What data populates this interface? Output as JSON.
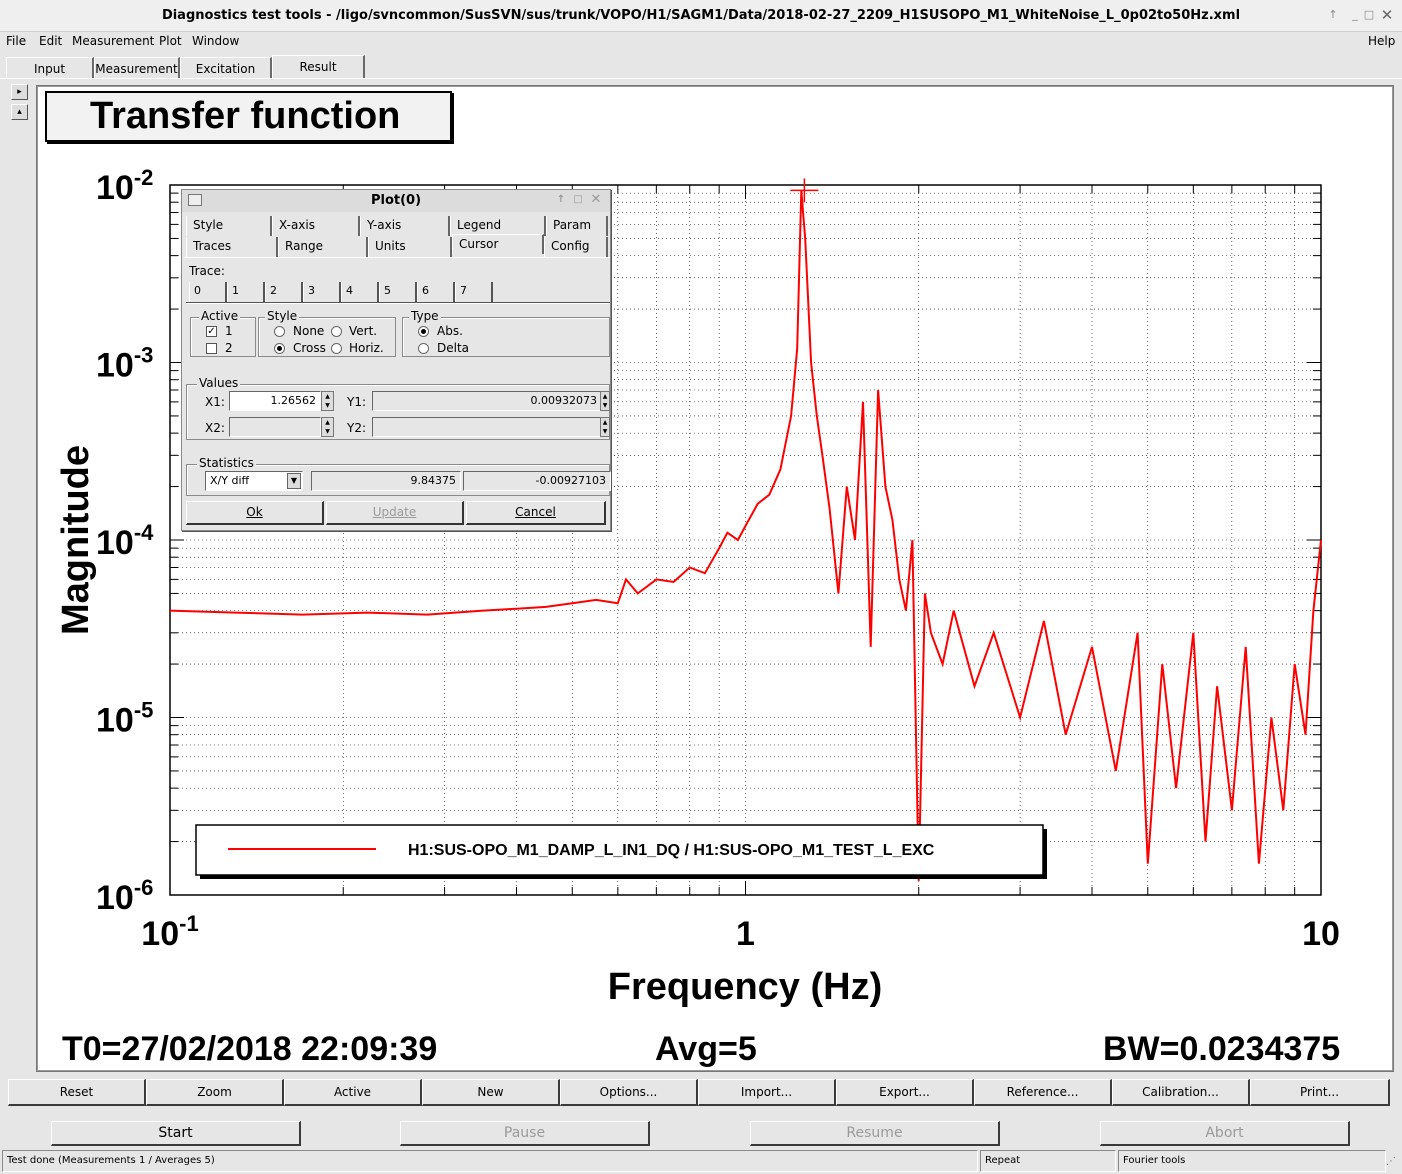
{
  "window": {
    "title": "Diagnostics test tools - /ligo/svncommon/SusSVN/sus/trunk/VOPO/H1/SAGM1/Data/2018-02-27_2209_H1SUSOPO_M1_WhiteNoise_L_0p02to50Hz.xml"
  },
  "menu": {
    "file": "File",
    "edit": "Edit",
    "measurement": "Measurement",
    "plot": "Plot",
    "window": "Window",
    "help": "Help"
  },
  "tabs": {
    "input": "Input",
    "measurement": "Measurement",
    "excitation": "Excitation",
    "result": "Result"
  },
  "plot": {
    "title": "Transfer function",
    "xlabel": "Frequency (Hz)",
    "ylabel": "Magnitude",
    "legend": "H1:SUS-OPO_M1_DAMP_L_IN1_DQ / H1:SUS-OPO_M1_TEST_L_EXC",
    "t0": "T0=27/02/2018 22:09:39",
    "avg": "Avg=5",
    "bw": "BW=0.0234375",
    "trace_color": "#ff0000"
  },
  "chart_data": {
    "type": "line",
    "title": "Transfer function",
    "xlabel": "Frequency (Hz)",
    "ylabel": "Magnitude",
    "xscale": "log",
    "yscale": "log",
    "xlim": [
      0.1,
      10
    ],
    "ylim": [
      1e-06,
      0.01
    ],
    "x_ticks": [
      {
        "base": "10",
        "exp": "-1"
      },
      {
        "base": "1",
        "exp": ""
      },
      {
        "base": "10",
        "exp": ""
      }
    ],
    "y_ticks": [
      {
        "base": "10",
        "exp": "-2"
      },
      {
        "base": "10",
        "exp": "-3"
      },
      {
        "base": "10",
        "exp": "-4"
      },
      {
        "base": "10",
        "exp": "-5"
      },
      {
        "base": "10",
        "exp": "-6"
      }
    ],
    "grid": true,
    "legend_placement": "bottom-left",
    "cursor": {
      "x": 1.26562,
      "y": 0.00932073
    },
    "series": [
      {
        "name": "H1:SUS-OPO_M1_DAMP_L_IN1_DQ / H1:SUS-OPO_M1_TEST_L_EXC",
        "color": "#ff0000",
        "x": [
          0.1,
          0.13,
          0.17,
          0.22,
          0.28,
          0.35,
          0.4,
          0.45,
          0.5,
          0.55,
          0.6,
          0.62,
          0.65,
          0.7,
          0.75,
          0.8,
          0.85,
          0.9,
          0.93,
          0.97,
          1.0,
          1.05,
          1.1,
          1.15,
          1.2,
          1.23,
          1.25,
          1.27,
          1.3,
          1.33,
          1.36,
          1.4,
          1.45,
          1.5,
          1.55,
          1.6,
          1.65,
          1.7,
          1.75,
          1.8,
          1.85,
          1.9,
          1.95,
          2.0,
          2.05,
          2.1,
          2.2,
          2.3,
          2.5,
          2.7,
          3.0,
          3.3,
          3.6,
          4.0,
          4.4,
          4.8,
          5.0,
          5.3,
          5.6,
          6.0,
          6.3,
          6.6,
          7.0,
          7.4,
          7.8,
          8.2,
          8.6,
          9.0,
          9.4,
          9.7,
          10.0
        ],
        "y": [
          4e-05,
          3.9e-05,
          3.8e-05,
          3.9e-05,
          3.8e-05,
          4e-05,
          4.1e-05,
          4.2e-05,
          4.4e-05,
          4.6e-05,
          4.4e-05,
          6e-05,
          5e-05,
          6e-05,
          5.8e-05,
          7e-05,
          6.5e-05,
          9e-05,
          0.00011,
          0.0001,
          0.00012,
          0.00016,
          0.00018,
          0.00025,
          0.0005,
          0.0012,
          0.0093,
          0.005,
          0.001,
          0.0005,
          0.0003,
          0.00015,
          5e-05,
          0.0002,
          0.0001,
          0.0006,
          2.5e-05,
          0.0007,
          0.0002,
          0.00013,
          6e-05,
          4e-05,
          0.0001,
          1.2e-06,
          5e-05,
          3e-05,
          2e-05,
          4e-05,
          1.5e-05,
          3e-05,
          1e-05,
          3.5e-05,
          8e-06,
          2.5e-05,
          5e-06,
          3e-05,
          1.5e-06,
          2e-05,
          4e-06,
          3e-05,
          2e-06,
          1.5e-05,
          3e-06,
          2.5e-05,
          1.5e-06,
          1e-05,
          3e-06,
          2e-05,
          8e-06,
          4e-05,
          0.0001
        ]
      }
    ]
  },
  "buttons": {
    "reset": "Reset",
    "zoom": "Zoom",
    "active": "Active",
    "new": "New",
    "options": "Options...",
    "import": "Import...",
    "export": "Export...",
    "reference": "Reference...",
    "calibration": "Calibration...",
    "print": "Print..."
  },
  "control": {
    "start": "Start",
    "pause": "Pause",
    "resume": "Resume",
    "abort": "Abort"
  },
  "status": {
    "main": "Test done (Measurements 1 / Averages 5)",
    "repeat": "Repeat",
    "fourier": "Fourier tools"
  },
  "dialog": {
    "title": "Plot(0)",
    "tabs_row1": [
      "Style",
      "X-axis",
      "Y-axis",
      "Legend",
      "Param"
    ],
    "tabs_row2": [
      "Traces",
      "Range",
      "Units",
      "Cursor",
      "Config"
    ],
    "trace_label": "Trace:",
    "trace_tabs": [
      "0",
      "1",
      "2",
      "3",
      "4",
      "5",
      "6",
      "7"
    ],
    "active_group": "Active",
    "active_1": "1",
    "active_2": "2",
    "style_group": "Style",
    "style_none": "None",
    "style_vert": "Vert.",
    "style_cross": "Cross",
    "style_horiz": "Horiz.",
    "type_group": "Type",
    "type_abs": "Abs.",
    "type_delta": "Delta",
    "values_group": "Values",
    "x1_label": "X1:",
    "x1_value": "1.26562",
    "y1_label": "Y1:",
    "y1_value": "0.00932073",
    "x2_label": "X2:",
    "y2_label": "Y2:",
    "statistics_group": "Statistics",
    "stat_select": "X/Y diff",
    "stat_val1": "9.84375",
    "stat_val2": "-0.00927103",
    "ok": "Ok",
    "update": "Update",
    "cancel": "Cancel"
  }
}
